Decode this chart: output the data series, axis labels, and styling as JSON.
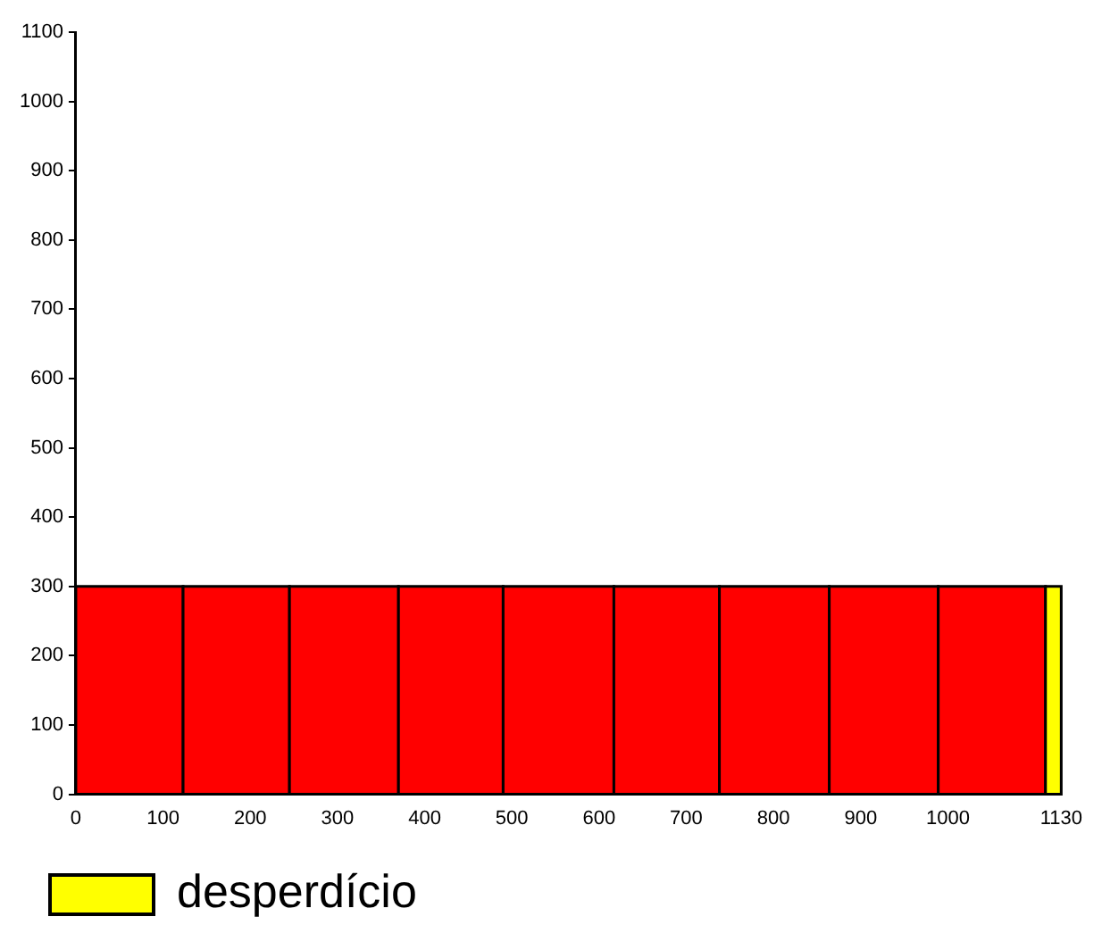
{
  "chart_data": {
    "type": "histogram",
    "bins": [
      0,
      123,
      245,
      370,
      490,
      617,
      738,
      864,
      989,
      1112,
      1130
    ],
    "series": [
      {
        "color": "#ff0000",
        "values": [
          300,
          300,
          300,
          300,
          300,
          300,
          300,
          300,
          300,
          null
        ]
      },
      {
        "name": "desperdício",
        "color": "#ffff00",
        "values": [
          null,
          null,
          null,
          null,
          null,
          null,
          null,
          null,
          null,
          300
        ]
      }
    ],
    "xlim": [
      0,
      1130
    ],
    "xticks": [
      0,
      100,
      200,
      300,
      400,
      500,
      600,
      700,
      800,
      900,
      1000,
      1130
    ],
    "ylim": [
      0,
      1100
    ],
    "yticks": [
      0,
      100,
      200,
      300,
      400,
      500,
      600,
      700,
      800,
      900,
      1000,
      1100
    ],
    "grid": false,
    "legend": "bottom left"
  }
}
